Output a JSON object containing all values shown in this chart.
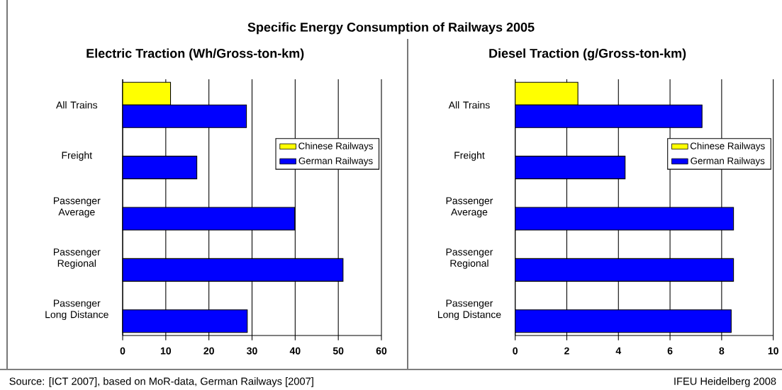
{
  "chart_data": [
    {
      "type": "bar",
      "orientation": "horizontal",
      "title": "Specific Energy Consumption of Railways 2005",
      "subtitle": "Electric Traction (Wh/Gross-ton-km)",
      "categories": [
        "All Trains",
        "Freight",
        "Passenger Average",
        "Passenger Regional",
        "Passenger Long Distance"
      ],
      "series": [
        {
          "name": "Chinese Railways",
          "color": "#ffff00",
          "values": [
            11.1,
            null,
            null,
            null,
            null
          ]
        },
        {
          "name": "German Railways",
          "color": "#0000ff",
          "values": [
            28.7,
            17.2,
            39.9,
            51.1,
            28.9
          ]
        }
      ],
      "xlim": [
        0,
        60
      ],
      "xticks": [
        0,
        10,
        20,
        30,
        40,
        50,
        60
      ],
      "grid": "x",
      "legend": "right",
      "annotations": [
        "Source: [ICT 2007], based on MoR-data, German Railways [2007]"
      ]
    },
    {
      "type": "bar",
      "orientation": "horizontal",
      "title": "Diesel Traction (g/Gross-ton-km)",
      "categories": [
        "All Trains",
        "Freight",
        "Passenger Average",
        "Passenger Regional",
        "Passenger Long Distance"
      ],
      "series": [
        {
          "name": "Chinese Railways",
          "color": "#ffff00",
          "values": [
            2.43,
            null,
            null,
            null,
            null
          ]
        },
        {
          "name": "German Railways",
          "color": "#0000ff",
          "values": [
            7.24,
            4.26,
            8.46,
            8.46,
            8.37
          ]
        }
      ],
      "xlim": [
        0,
        10
      ],
      "xticks": [
        0,
        2,
        4,
        6,
        8,
        10
      ],
      "grid": "x",
      "legend": "right",
      "annotations": [
        "IFEU Heidelberg 2008"
      ]
    }
  ]
}
